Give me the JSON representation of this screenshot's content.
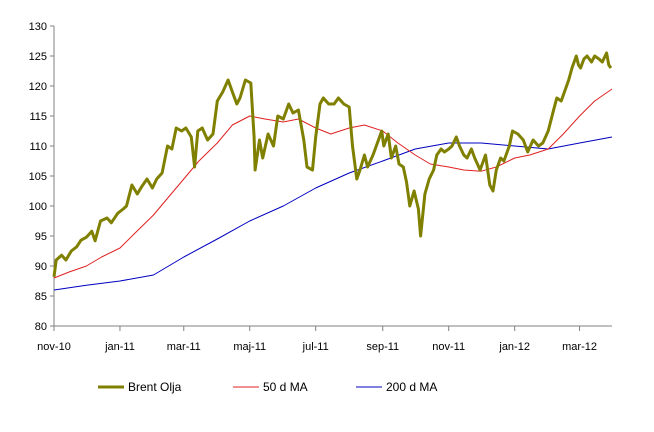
{
  "chart_data": {
    "type": "line",
    "title": "",
    "xlabel": "",
    "ylabel": "",
    "ylim": [
      80,
      130
    ],
    "yticks": [
      80,
      85,
      90,
      95,
      100,
      105,
      110,
      115,
      120,
      125,
      130
    ],
    "xlim": [
      "2010-11-01",
      "2012-03-31"
    ],
    "xticks": [
      {
        "date": "2010-11-01",
        "label": "nov-10"
      },
      {
        "date": "2011-01-01",
        "label": "jan-11"
      },
      {
        "date": "2011-03-01",
        "label": "mar-11"
      },
      {
        "date": "2011-05-01",
        "label": "maj-11"
      },
      {
        "date": "2011-07-01",
        "label": "jul-11"
      },
      {
        "date": "2011-09-01",
        "label": "sep-11"
      },
      {
        "date": "2011-11-01",
        "label": "nov-11"
      },
      {
        "date": "2012-01-01",
        "label": "jan-12"
      },
      {
        "date": "2012-03-01",
        "label": "mar-12"
      }
    ],
    "grid": false,
    "legend_position": "bottom",
    "series": [
      {
        "name": "Brent Olja",
        "color": "#808000",
        "points": [
          [
            "2010-11-01",
            88.2
          ],
          [
            "2010-11-03",
            91.0
          ],
          [
            "2010-11-08",
            91.8
          ],
          [
            "2010-11-12",
            91.0
          ],
          [
            "2010-11-17",
            92.5
          ],
          [
            "2010-11-22",
            93.2
          ],
          [
            "2010-11-26",
            94.3
          ],
          [
            "2010-12-01",
            94.8
          ],
          [
            "2010-12-06",
            95.8
          ],
          [
            "2010-12-09",
            94.2
          ],
          [
            "2010-12-14",
            97.5
          ],
          [
            "2010-12-20",
            98.0
          ],
          [
            "2010-12-24",
            97.2
          ],
          [
            "2010-12-30",
            98.8
          ],
          [
            "2011-01-04",
            99.5
          ],
          [
            "2011-01-07",
            100.0
          ],
          [
            "2011-01-12",
            103.5
          ],
          [
            "2011-01-17",
            102.0
          ],
          [
            "2011-01-21",
            103.2
          ],
          [
            "2011-01-26",
            104.5
          ],
          [
            "2011-01-31",
            103.0
          ],
          [
            "2011-02-04",
            104.5
          ],
          [
            "2011-02-09",
            105.5
          ],
          [
            "2011-02-14",
            110.0
          ],
          [
            "2011-02-18",
            109.5
          ],
          [
            "2011-02-22",
            113.0
          ],
          [
            "2011-02-27",
            112.5
          ],
          [
            "2011-03-03",
            113.0
          ],
          [
            "2011-03-08",
            111.5
          ],
          [
            "2011-03-11",
            106.5
          ],
          [
            "2011-03-14",
            112.5
          ],
          [
            "2011-03-18",
            113.0
          ],
          [
            "2011-03-23",
            111.0
          ],
          [
            "2011-03-28",
            112.0
          ],
          [
            "2011-04-01",
            117.5
          ],
          [
            "2011-04-06",
            119.0
          ],
          [
            "2011-04-11",
            121.0
          ],
          [
            "2011-04-15",
            119.0
          ],
          [
            "2011-04-19",
            117.0
          ],
          [
            "2011-04-22",
            118.0
          ],
          [
            "2011-04-27",
            121.0
          ],
          [
            "2011-05-02",
            120.5
          ],
          [
            "2011-05-05",
            111.5
          ],
          [
            "2011-05-06",
            106.0
          ],
          [
            "2011-05-10",
            111.0
          ],
          [
            "2011-05-13",
            108.0
          ],
          [
            "2011-05-18",
            112.0
          ],
          [
            "2011-05-23",
            110.0
          ],
          [
            "2011-05-27",
            115.0
          ],
          [
            "2011-06-01",
            114.5
          ],
          [
            "2011-06-06",
            117.0
          ],
          [
            "2011-06-10",
            115.5
          ],
          [
            "2011-06-15",
            116.0
          ],
          [
            "2011-06-20",
            111.0
          ],
          [
            "2011-06-23",
            106.5
          ],
          [
            "2011-06-28",
            106.0
          ],
          [
            "2011-07-01",
            111.5
          ],
          [
            "2011-07-05",
            117.0
          ],
          [
            "2011-07-08",
            118.0
          ],
          [
            "2011-07-13",
            117.0
          ],
          [
            "2011-07-18",
            117.0
          ],
          [
            "2011-07-22",
            118.0
          ],
          [
            "2011-07-27",
            117.0
          ],
          [
            "2011-08-01",
            116.5
          ],
          [
            "2011-08-04",
            110.0
          ],
          [
            "2011-08-08",
            104.5
          ],
          [
            "2011-08-11",
            106.0
          ],
          [
            "2011-08-15",
            108.5
          ],
          [
            "2011-08-18",
            106.5
          ],
          [
            "2011-08-23",
            108.5
          ],
          [
            "2011-08-26",
            110.0
          ],
          [
            "2011-08-31",
            112.5
          ],
          [
            "2011-09-02",
            110.0
          ],
          [
            "2011-09-06",
            112.0
          ],
          [
            "2011-09-09",
            108.0
          ],
          [
            "2011-09-13",
            110.0
          ],
          [
            "2011-09-16",
            107.0
          ],
          [
            "2011-09-20",
            106.5
          ],
          [
            "2011-09-23",
            104.0
          ],
          [
            "2011-09-26",
            100.0
          ],
          [
            "2011-09-30",
            102.5
          ],
          [
            "2011-10-04",
            99.5
          ],
          [
            "2011-10-06",
            95.0
          ],
          [
            "2011-10-10",
            102.0
          ],
          [
            "2011-10-14",
            104.5
          ],
          [
            "2011-10-18",
            106.0
          ],
          [
            "2011-10-21",
            108.5
          ],
          [
            "2011-10-25",
            109.5
          ],
          [
            "2011-10-28",
            109.0
          ],
          [
            "2011-11-01",
            109.5
          ],
          [
            "2011-11-04",
            110.0
          ],
          [
            "2011-11-08",
            111.5
          ],
          [
            "2011-11-11",
            110.0
          ],
          [
            "2011-11-15",
            108.5
          ],
          [
            "2011-11-18",
            108.0
          ],
          [
            "2011-11-22",
            109.5
          ],
          [
            "2011-11-25",
            108.0
          ],
          [
            "2011-11-30",
            106.0
          ],
          [
            "2011-12-05",
            108.5
          ],
          [
            "2011-12-09",
            103.5
          ],
          [
            "2011-12-12",
            102.5
          ],
          [
            "2011-12-15",
            106.0
          ],
          [
            "2011-12-19",
            108.0
          ],
          [
            "2011-12-22",
            107.5
          ],
          [
            "2011-12-27",
            110.0
          ],
          [
            "2011-12-30",
            112.5
          ],
          [
            "2012-01-04",
            112.0
          ],
          [
            "2012-01-09",
            111.0
          ],
          [
            "2012-01-13",
            109.0
          ],
          [
            "2012-01-18",
            111.0
          ],
          [
            "2012-01-23",
            110.0
          ],
          [
            "2012-01-27",
            110.5
          ],
          [
            "2012-02-01",
            112.5
          ],
          [
            "2012-02-06",
            116.0
          ],
          [
            "2012-02-09",
            118.0
          ],
          [
            "2012-02-13",
            117.5
          ],
          [
            "2012-02-16",
            119.0
          ],
          [
            "2012-02-20",
            121.0
          ],
          [
            "2012-02-23",
            123.0
          ],
          [
            "2012-02-27",
            125.0
          ],
          [
            "2012-02-29",
            123.5
          ],
          [
            "2012-03-02",
            123.0
          ],
          [
            "2012-03-05",
            124.5
          ],
          [
            "2012-03-08",
            125.0
          ],
          [
            "2012-03-12",
            124.0
          ],
          [
            "2012-03-15",
            125.0
          ],
          [
            "2012-03-19",
            124.5
          ],
          [
            "2012-03-22",
            124.0
          ],
          [
            "2012-03-26",
            125.5
          ],
          [
            "2012-03-28",
            123.5
          ],
          [
            "2012-03-30",
            123.0
          ]
        ]
      },
      {
        "name": "50 d MA",
        "color": "#e02020",
        "points": [
          [
            "2010-11-01",
            88.0
          ],
          [
            "2010-11-15",
            89.0
          ],
          [
            "2010-12-01",
            90.0
          ],
          [
            "2010-12-15",
            91.5
          ],
          [
            "2011-01-01",
            93.0
          ],
          [
            "2011-01-15",
            95.5
          ],
          [
            "2011-02-01",
            98.5
          ],
          [
            "2011-02-15",
            101.5
          ],
          [
            "2011-03-01",
            104.5
          ],
          [
            "2011-03-15",
            107.5
          ],
          [
            "2011-04-01",
            110.5
          ],
          [
            "2011-04-15",
            113.5
          ],
          [
            "2011-05-01",
            115.0
          ],
          [
            "2011-05-15",
            114.5
          ],
          [
            "2011-06-01",
            114.0
          ],
          [
            "2011-06-15",
            114.5
          ],
          [
            "2011-07-01",
            113.0
          ],
          [
            "2011-07-15",
            112.0
          ],
          [
            "2011-08-01",
            113.0
          ],
          [
            "2011-08-15",
            113.5
          ],
          [
            "2011-09-01",
            112.5
          ],
          [
            "2011-09-15",
            110.5
          ],
          [
            "2011-10-01",
            108.5
          ],
          [
            "2011-10-15",
            107.0
          ],
          [
            "2011-11-01",
            106.5
          ],
          [
            "2011-11-15",
            106.0
          ],
          [
            "2011-12-01",
            105.8
          ],
          [
            "2011-12-15",
            106.5
          ],
          [
            "2012-01-01",
            108.0
          ],
          [
            "2012-01-15",
            108.5
          ],
          [
            "2012-02-01",
            109.5
          ],
          [
            "2012-02-15",
            112.0
          ],
          [
            "2012-03-01",
            115.0
          ],
          [
            "2012-03-15",
            117.5
          ],
          [
            "2012-03-31",
            119.5
          ]
        ]
      },
      {
        "name": "200 d MA",
        "color": "#0000c0",
        "points": [
          [
            "2010-11-01",
            86.0
          ],
          [
            "2010-12-01",
            86.8
          ],
          [
            "2011-01-01",
            87.5
          ],
          [
            "2011-02-01",
            88.5
          ],
          [
            "2011-03-01",
            91.5
          ],
          [
            "2011-04-01",
            94.5
          ],
          [
            "2011-05-01",
            97.5
          ],
          [
            "2011-06-01",
            100.0
          ],
          [
            "2011-07-01",
            103.0
          ],
          [
            "2011-08-01",
            105.5
          ],
          [
            "2011-09-01",
            107.5
          ],
          [
            "2011-10-01",
            109.5
          ],
          [
            "2011-11-01",
            110.5
          ],
          [
            "2011-12-01",
            110.5
          ],
          [
            "2012-01-01",
            110.0
          ],
          [
            "2012-02-01",
            109.5
          ],
          [
            "2012-03-01",
            110.5
          ],
          [
            "2012-03-31",
            111.5
          ]
        ]
      }
    ]
  }
}
